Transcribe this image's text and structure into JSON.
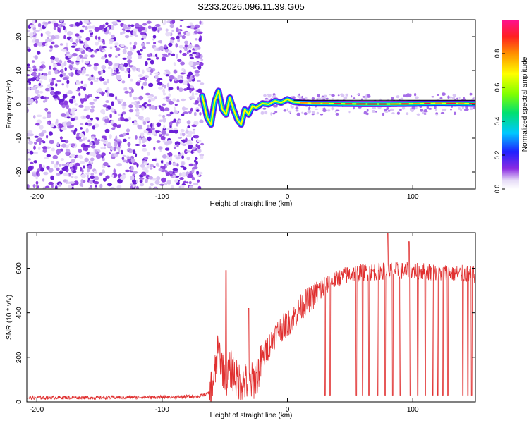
{
  "title": "S233.2026.096.11.39.G05",
  "chart_data": [
    {
      "type": "heatmap",
      "xlabel": "Height of straight line (km)",
      "ylabel": "Frequency (Hz)",
      "xlim": [
        -208,
        150
      ],
      "ylim": [
        -25,
        25
      ],
      "xticks": [
        -200,
        -100,
        0,
        100
      ],
      "yticks": [
        -20,
        -10,
        0,
        10,
        20
      ],
      "colorbar": {
        "label": "Normalized spectral amplitude",
        "range": [
          0,
          1
        ],
        "ticks": [
          0,
          0.2,
          0.4,
          0.6,
          0.8
        ]
      },
      "regions": [
        {
          "name": "noise",
          "x": [
            -208,
            -68
          ],
          "f_range": [
            -25,
            25
          ],
          "amplitude": "low, scattered"
        },
        {
          "name": "transition",
          "x": [
            -68,
            -25
          ],
          "f_range": [
            -10,
            6
          ],
          "amplitude": "medium, oscillating"
        },
        {
          "name": "coherent-line",
          "x": [
            -25,
            150
          ],
          "f_center": [
            1,
            0
          ],
          "amplitude": "high, near 0 Hz"
        }
      ],
      "ridge": {
        "x": [
          -68,
          -64,
          -61,
          -58,
          -55,
          -52,
          -49,
          -46,
          -43,
          -40,
          -37,
          -34,
          -31,
          -28,
          -25,
          -20,
          -15,
          -10,
          -5,
          0,
          5,
          10,
          20,
          40,
          60,
          80,
          100,
          120,
          150
        ],
        "f": [
          2.5,
          -4,
          -6,
          1,
          4,
          -1.5,
          -3,
          2,
          -1.5,
          -4.5,
          -6,
          -1.5,
          -3,
          -0.5,
          -1,
          0.3,
          0,
          1,
          0.5,
          1.5,
          0.7,
          0.5,
          0.3,
          0.2,
          0.1,
          0.1,
          0.2,
          0.3,
          0.2
        ]
      }
    },
    {
      "type": "line",
      "xlabel": "Height of straight line (km)",
      "ylabel": "SNR (10 * v/v)",
      "xlim": [
        -208,
        150
      ],
      "ylim": [
        0,
        760
      ],
      "xticks": [
        -200,
        -100,
        0,
        100
      ],
      "yticks": [
        0,
        200,
        400,
        600
      ],
      "series": [
        {
          "name": "SNR",
          "color": "#e03030",
          "x": [
            -208,
            -180,
            -150,
            -120,
            -90,
            -70,
            -62,
            -58,
            -55,
            -52,
            -48,
            -45,
            -40,
            -35,
            -30,
            -25,
            -20,
            -15,
            -10,
            -5,
            0,
            5,
            10,
            15,
            20,
            25,
            30,
            40,
            50,
            60,
            70,
            80,
            90,
            100,
            110,
            120,
            130,
            140,
            150
          ],
          "y": [
            18,
            20,
            19,
            21,
            22,
            25,
            40,
            120,
            240,
            160,
            110,
            150,
            95,
            90,
            80,
            110,
            190,
            250,
            300,
            330,
            350,
            380,
            420,
            450,
            470,
            500,
            520,
            555,
            575,
            580,
            585,
            590,
            588,
            590,
            585,
            580,
            578,
            575,
            570
          ],
          "dropouts_x": [
            30,
            34,
            55,
            60,
            65,
            72,
            78,
            84,
            90,
            98,
            104,
            110,
            116,
            120,
            124,
            128,
            140,
            144,
            147
          ],
          "dropouts_y": 30,
          "peaks": [
            [
              -49,
              590
            ],
            [
              -31,
              420
            ],
            [
              80,
              760
            ],
            [
              90,
              745
            ],
            [
              97,
              720
            ]
          ]
        }
      ]
    }
  ]
}
